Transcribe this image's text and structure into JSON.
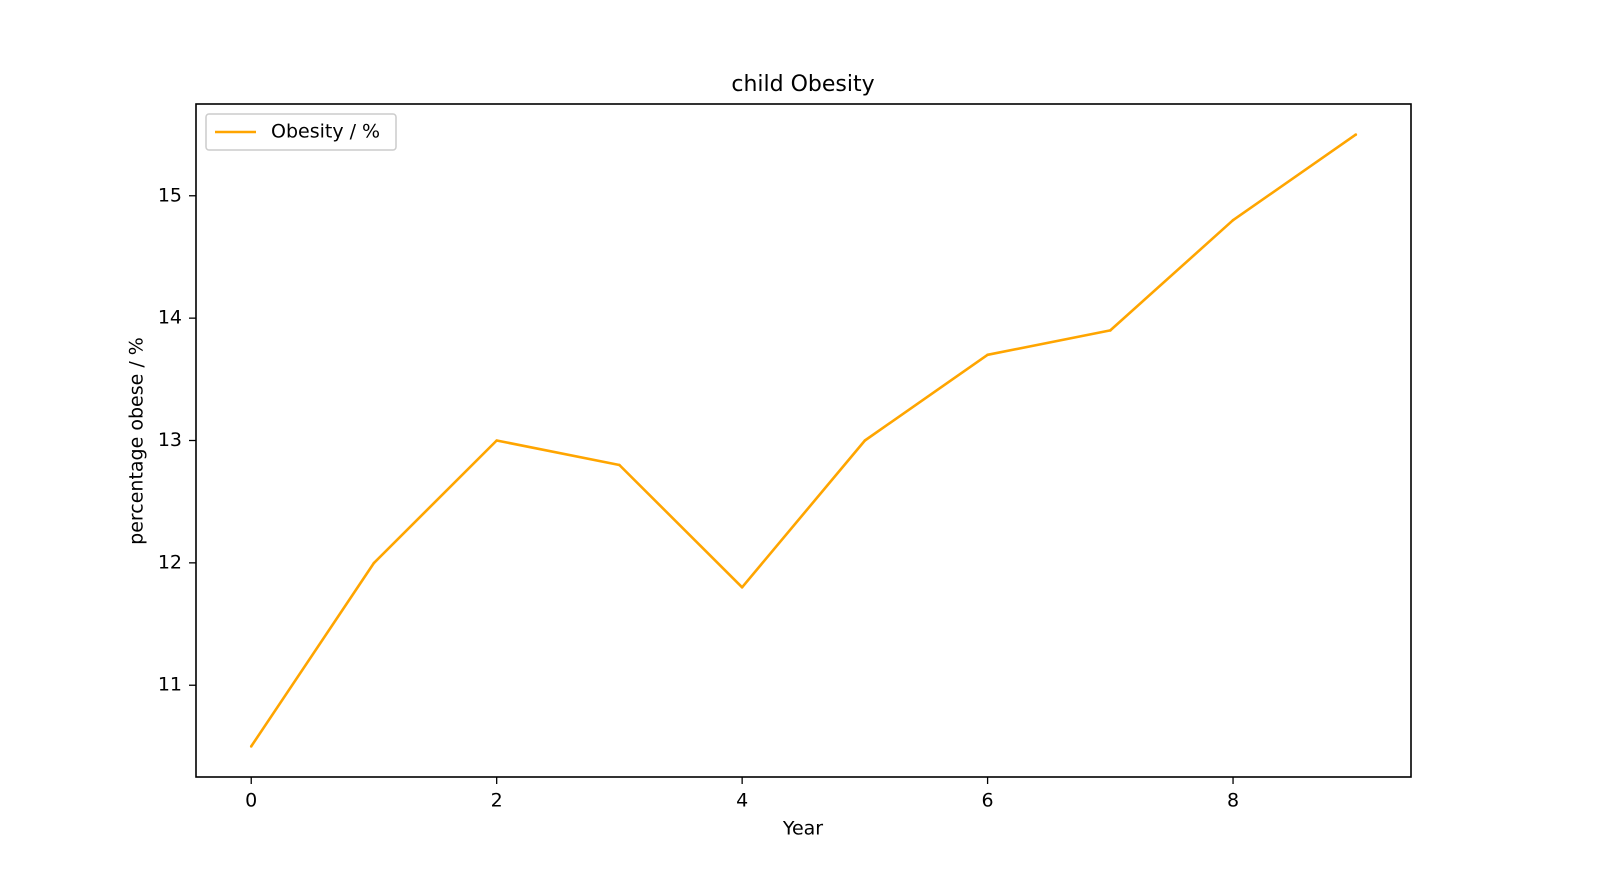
{
  "chart_data": {
    "type": "line",
    "title": "child Obesity",
    "xlabel": "Year",
    "ylabel": "percentage obese / %",
    "x": [
      0,
      1,
      2,
      3,
      4,
      5,
      6,
      7,
      8,
      9
    ],
    "series": [
      {
        "name": "Obesity / %",
        "color": "#FFA500",
        "values": [
          10.5,
          12.0,
          13.0,
          12.8,
          11.8,
          13.0,
          13.7,
          13.9,
          14.8,
          15.5
        ]
      }
    ],
    "xlim": [
      -0.45,
      9.45
    ],
    "ylim": [
      10.25,
      15.75
    ],
    "xticks": [
      0,
      2,
      4,
      6,
      8
    ],
    "yticks": [
      11,
      12,
      13,
      14,
      15
    ],
    "grid": false,
    "legend": "upper left"
  }
}
